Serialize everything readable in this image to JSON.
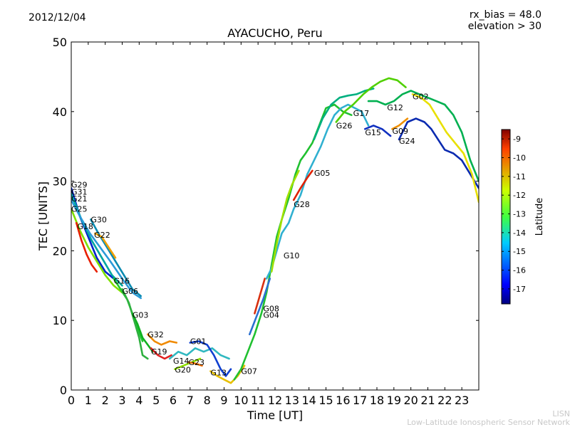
{
  "date": "2012/12/04",
  "rx_bias_text": "rx_bias = 48.0",
  "elevation_text": "elevation > 30",
  "footer": {
    "line1": "LISN",
    "line2": "Low-Latitude Ionospheric Sensor Network"
  },
  "chart_data": {
    "type": "line",
    "title": "AYACUCHO, Peru",
    "xlabel": "Time [UT]",
    "ylabel": "TEC [UNITS]",
    "xlim": [
      0,
      24
    ],
    "ylim": [
      0,
      50
    ],
    "xticks": [
      "0",
      "1",
      "2",
      "3",
      "4",
      "5",
      "6",
      "7",
      "8",
      "9",
      "10",
      "11",
      "12",
      "13",
      "14",
      "15",
      "16",
      "17",
      "18",
      "19",
      "20",
      "21",
      "22",
      "23"
    ],
    "yticks": [
      "0",
      "10",
      "20",
      "30",
      "40",
      "50"
    ],
    "colorbar": {
      "label": "Latitude",
      "range": [
        -17.8,
        -8.5
      ],
      "ticks": [
        "-9",
        "-10",
        "-11",
        "-12",
        "-13",
        "-14",
        "-15",
        "-16",
        "-17"
      ]
    },
    "satellites": [
      {
        "name": "G29",
        "t": 0.0,
        "tec": 29.5
      },
      {
        "name": "G31",
        "t": 0.0,
        "tec": 28.5
      },
      {
        "name": "G21",
        "t": 0.0,
        "tec": 27.5
      },
      {
        "name": "G25",
        "t": 0.0,
        "tec": 26.0
      },
      {
        "name": "G30",
        "t": 1.15,
        "tec": 24.5
      },
      {
        "name": "G18",
        "t": 0.35,
        "tec": 23.5
      },
      {
        "name": "G22",
        "t": 1.35,
        "tec": 22.3
      },
      {
        "name": "G16",
        "t": 2.5,
        "tec": 15.7
      },
      {
        "name": "G06",
        "t": 3.0,
        "tec": 14.2
      },
      {
        "name": "G03",
        "t": 3.6,
        "tec": 10.8
      },
      {
        "name": "G32",
        "t": 4.5,
        "tec": 8.0
      },
      {
        "name": "G19",
        "t": 4.7,
        "tec": 5.5
      },
      {
        "name": "G01",
        "t": 7.0,
        "tec": 7.0
      },
      {
        "name": "G14",
        "t": 6.0,
        "tec": 4.2
      },
      {
        "name": "G23",
        "t": 6.9,
        "tec": 4.0
      },
      {
        "name": "G20",
        "t": 6.1,
        "tec": 2.9
      },
      {
        "name": "G13",
        "t": 8.2,
        "tec": 2.5
      },
      {
        "name": "G07",
        "t": 10.0,
        "tec": 2.7
      },
      {
        "name": "G08",
        "t": 11.3,
        "tec": 11.7
      },
      {
        "name": "G04",
        "t": 11.3,
        "tec": 10.8
      },
      {
        "name": "G10",
        "t": 12.5,
        "tec": 19.3
      },
      {
        "name": "G28",
        "t": 13.1,
        "tec": 26.7
      },
      {
        "name": "G05",
        "t": 14.3,
        "tec": 31.2
      },
      {
        "name": "G26",
        "t": 15.6,
        "tec": 38.0
      },
      {
        "name": "G17",
        "t": 16.6,
        "tec": 39.8
      },
      {
        "name": "G15",
        "t": 17.3,
        "tec": 37.0
      },
      {
        "name": "G12",
        "t": 18.6,
        "tec": 40.6
      },
      {
        "name": "G09",
        "t": 18.9,
        "tec": 37.2
      },
      {
        "name": "G24",
        "t": 19.3,
        "tec": 35.8
      },
      {
        "name": "G02",
        "t": 20.1,
        "tec": 42.2
      }
    ],
    "series": [
      {
        "name": "G29",
        "color": "#0022cc",
        "points": [
          [
            0,
            29
          ],
          [
            0.5,
            25
          ],
          [
            1.0,
            22
          ],
          [
            1.5,
            19
          ],
          [
            2.0,
            17
          ],
          [
            2.5,
            16
          ]
        ]
      },
      {
        "name": "G31",
        "color": "#00a6a0",
        "points": [
          [
            0,
            28.2
          ],
          [
            0.6,
            24.5
          ],
          [
            1.2,
            21.5
          ],
          [
            1.8,
            19
          ],
          [
            2.4,
            16.5
          ],
          [
            3.0,
            15
          ]
        ]
      },
      {
        "name": "G21",
        "color": "#2a9ad8",
        "points": [
          [
            0,
            27.3
          ],
          [
            0.5,
            25
          ],
          [
            1.1,
            22.5
          ],
          [
            1.7,
            20.5
          ],
          [
            2.3,
            18.5
          ],
          [
            3.0,
            16
          ],
          [
            3.6,
            14
          ],
          [
            4.1,
            13.2
          ]
        ]
      },
      {
        "name": "G25",
        "color": "#80e000",
        "points": [
          [
            0,
            26
          ],
          [
            0.5,
            23
          ],
          [
            1.0,
            20.5
          ],
          [
            1.5,
            18.5
          ],
          [
            2.0,
            16.5
          ],
          [
            2.5,
            15
          ],
          [
            3.0,
            14
          ]
        ]
      },
      {
        "name": "G18",
        "color": "#e82000",
        "points": [
          [
            0.3,
            24
          ],
          [
            0.6,
            21.5
          ],
          [
            0.9,
            19.5
          ],
          [
            1.2,
            18
          ],
          [
            1.5,
            17
          ]
        ]
      },
      {
        "name": "G30",
        "color": "#0a8ab0",
        "points": [
          [
            1.15,
            24.5
          ],
          [
            1.6,
            22.5
          ],
          [
            2.1,
            20.5
          ],
          [
            2.6,
            18.5
          ],
          [
            3.1,
            16.5
          ],
          [
            3.6,
            14.5
          ],
          [
            4.1,
            13.5
          ]
        ]
      },
      {
        "name": "G22",
        "color": "#f0a000",
        "points": [
          [
            1.4,
            22.5
          ],
          [
            1.8,
            22.0
          ],
          [
            2.2,
            20.5
          ],
          [
            2.6,
            19.0
          ]
        ]
      },
      {
        "name": "G16",
        "color": "#1ec830",
        "points": [
          [
            2.5,
            16
          ],
          [
            2.9,
            14.5
          ],
          [
            3.3,
            13
          ],
          [
            3.6,
            11
          ],
          [
            3.9,
            9
          ],
          [
            4.2,
            7
          ]
        ]
      },
      {
        "name": "G06",
        "color": "#2fb040",
        "points": [
          [
            3.0,
            14.5
          ],
          [
            3.4,
            12.5
          ],
          [
            3.7,
            10
          ],
          [
            4.0,
            7.5
          ],
          [
            4.2,
            5
          ],
          [
            4.5,
            4.5
          ]
        ]
      },
      {
        "name": "G03",
        "color": "#10b020",
        "points": [
          [
            3.6,
            11
          ],
          [
            3.9,
            9.5
          ],
          [
            4.2,
            7.5
          ],
          [
            4.5,
            6.5
          ],
          [
            4.8,
            5.5
          ]
        ]
      },
      {
        "name": "G32",
        "color": "#f08a00",
        "points": [
          [
            4.5,
            8
          ],
          [
            4.9,
            7
          ],
          [
            5.3,
            6.5
          ],
          [
            5.8,
            7
          ],
          [
            6.2,
            6.8
          ]
        ]
      },
      {
        "name": "G19",
        "color": "#e02020",
        "points": [
          [
            4.7,
            6
          ],
          [
            5.1,
            5
          ],
          [
            5.5,
            4.5
          ],
          [
            5.9,
            5
          ]
        ]
      },
      {
        "name": "G14",
        "color": "#30b8c0",
        "points": [
          [
            5.8,
            4.5
          ],
          [
            6.3,
            5.5
          ],
          [
            6.8,
            5
          ],
          [
            7.3,
            6
          ],
          [
            7.8,
            5.5
          ],
          [
            8.3,
            6
          ],
          [
            8.8,
            5
          ],
          [
            9.3,
            4.5
          ]
        ]
      },
      {
        "name": "G01",
        "color": "#1040d0",
        "points": [
          [
            7.0,
            6.8
          ],
          [
            7.5,
            7
          ],
          [
            8.0,
            6.5
          ],
          [
            8.4,
            5
          ],
          [
            8.8,
            3
          ],
          [
            9.1,
            2
          ],
          [
            9.4,
            3
          ]
        ]
      },
      {
        "name": "G20",
        "color": "#90e000",
        "points": [
          [
            6.1,
            3
          ],
          [
            6.6,
            3.5
          ],
          [
            7.1,
            4
          ],
          [
            7.6,
            4.5
          ]
        ]
      },
      {
        "name": "G23",
        "color": "#f07000",
        "points": [
          [
            6.9,
            4
          ],
          [
            7.3,
            3.8
          ],
          [
            7.7,
            3.5
          ]
        ]
      },
      {
        "name": "G13",
        "color": "#e8c000",
        "points": [
          [
            8.2,
            2.7
          ],
          [
            8.6,
            2
          ],
          [
            9.0,
            1.5
          ],
          [
            9.4,
            1
          ],
          [
            9.8,
            2
          ],
          [
            10.2,
            3.5
          ]
        ]
      },
      {
        "name": "G07",
        "color": "#20c030",
        "points": [
          [
            9.6,
            1.5
          ],
          [
            10.0,
            3
          ],
          [
            10.4,
            5.5
          ],
          [
            10.8,
            8
          ],
          [
            11.2,
            11
          ],
          [
            11.5,
            14
          ],
          [
            11.8,
            18
          ],
          [
            12.1,
            22
          ],
          [
            12.4,
            24.5
          ],
          [
            12.8,
            27.5
          ],
          [
            13.2,
            31
          ],
          [
            13.5,
            33
          ],
          [
            13.8,
            34
          ],
          [
            14.2,
            35.5
          ],
          [
            14.6,
            38
          ],
          [
            15.0,
            40.5
          ],
          [
            15.5,
            41
          ],
          [
            16.0,
            40
          ],
          [
            16.5,
            39.5
          ]
        ]
      },
      {
        "name": "G08",
        "color": "#d83010",
        "points": [
          [
            10.8,
            11
          ],
          [
            11.1,
            13.5
          ],
          [
            11.4,
            16
          ]
        ]
      },
      {
        "name": "G04",
        "color": "#2a70d0",
        "points": [
          [
            10.5,
            8
          ],
          [
            10.9,
            10.5
          ],
          [
            11.3,
            13
          ],
          [
            11.7,
            16
          ]
        ]
      },
      {
        "name": "G10",
        "color": "#30b0d0",
        "points": [
          [
            11.5,
            16
          ],
          [
            11.8,
            17.5
          ],
          [
            12.1,
            20
          ],
          [
            12.4,
            22.5
          ],
          [
            12.8,
            24
          ],
          [
            13.1,
            26
          ],
          [
            13.5,
            28
          ],
          [
            13.9,
            31
          ],
          [
            14.3,
            33
          ],
          [
            14.7,
            35
          ],
          [
            15.1,
            37.5
          ],
          [
            15.5,
            39.5
          ],
          [
            15.9,
            40.5
          ],
          [
            16.3,
            41
          ],
          [
            16.7,
            40.5
          ],
          [
            17.1,
            40
          ],
          [
            17.5,
            38
          ]
        ]
      },
      {
        "name": "G28",
        "color": "#a0e000",
        "points": [
          [
            11.8,
            17
          ],
          [
            12.1,
            21
          ],
          [
            12.4,
            24.5
          ],
          [
            12.7,
            27.5
          ],
          [
            13.0,
            29.5
          ],
          [
            13.4,
            31.5
          ]
        ]
      },
      {
        "name": "G05",
        "color": "#e02000",
        "points": [
          [
            13.1,
            27.3
          ],
          [
            13.5,
            29
          ],
          [
            13.9,
            30.5
          ],
          [
            14.2,
            31.5
          ]
        ]
      },
      {
        "name": "G26",
        "color": "#00b080",
        "points": [
          [
            14.3,
            36
          ],
          [
            14.8,
            39
          ],
          [
            15.3,
            41
          ],
          [
            15.8,
            42
          ],
          [
            16.3,
            42.3
          ],
          [
            16.8,
            42.5
          ],
          [
            17.3,
            43
          ],
          [
            17.8,
            43.3
          ]
        ]
      },
      {
        "name": "G17",
        "color": "#50d000",
        "points": [
          [
            15.6,
            38.5
          ],
          [
            16.1,
            40
          ],
          [
            16.6,
            41
          ],
          [
            17.2,
            42.5
          ],
          [
            17.7,
            43.5
          ],
          [
            18.2,
            44.3
          ],
          [
            18.7,
            44.8
          ],
          [
            19.2,
            44.5
          ],
          [
            19.7,
            43.5
          ]
        ]
      },
      {
        "name": "G15",
        "color": "#1030c0",
        "points": [
          [
            17.3,
            37.5
          ],
          [
            17.8,
            38
          ],
          [
            18.3,
            37.5
          ],
          [
            18.8,
            36.5
          ]
        ]
      },
      {
        "name": "G12",
        "color": "#00b050",
        "points": [
          [
            17.5,
            41.5
          ],
          [
            18.0,
            41.5
          ],
          [
            18.5,
            41
          ],
          [
            19.0,
            41.5
          ],
          [
            19.5,
            42.5
          ],
          [
            20.0,
            43
          ],
          [
            20.5,
            42.5
          ],
          [
            21.0,
            42
          ],
          [
            21.5,
            41.5
          ],
          [
            22.0,
            41
          ],
          [
            22.5,
            39.5
          ],
          [
            23.0,
            37
          ],
          [
            23.5,
            33
          ],
          [
            24.0,
            30
          ]
        ]
      },
      {
        "name": "G09",
        "color": "#f09000",
        "points": [
          [
            18.9,
            37.5
          ],
          [
            19.3,
            38
          ],
          [
            19.8,
            39
          ]
        ]
      },
      {
        "name": "G24",
        "color": "#0a2ab0",
        "points": [
          [
            19.3,
            36
          ],
          [
            19.8,
            38.5
          ],
          [
            20.3,
            39
          ],
          [
            20.8,
            38.5
          ],
          [
            21.2,
            37.5
          ],
          [
            21.6,
            36
          ],
          [
            22.0,
            34.5
          ],
          [
            22.5,
            34
          ],
          [
            23.0,
            33
          ],
          [
            23.5,
            31
          ],
          [
            24.0,
            29
          ]
        ]
      },
      {
        "name": "G02",
        "color": "#e8e000",
        "points": [
          [
            20.1,
            42.5
          ],
          [
            20.6,
            42
          ],
          [
            21.1,
            41
          ],
          [
            21.6,
            39
          ],
          [
            22.1,
            37
          ],
          [
            22.6,
            35.5
          ],
          [
            23.1,
            34
          ],
          [
            23.6,
            31
          ],
          [
            24.0,
            27
          ]
        ]
      }
    ]
  }
}
